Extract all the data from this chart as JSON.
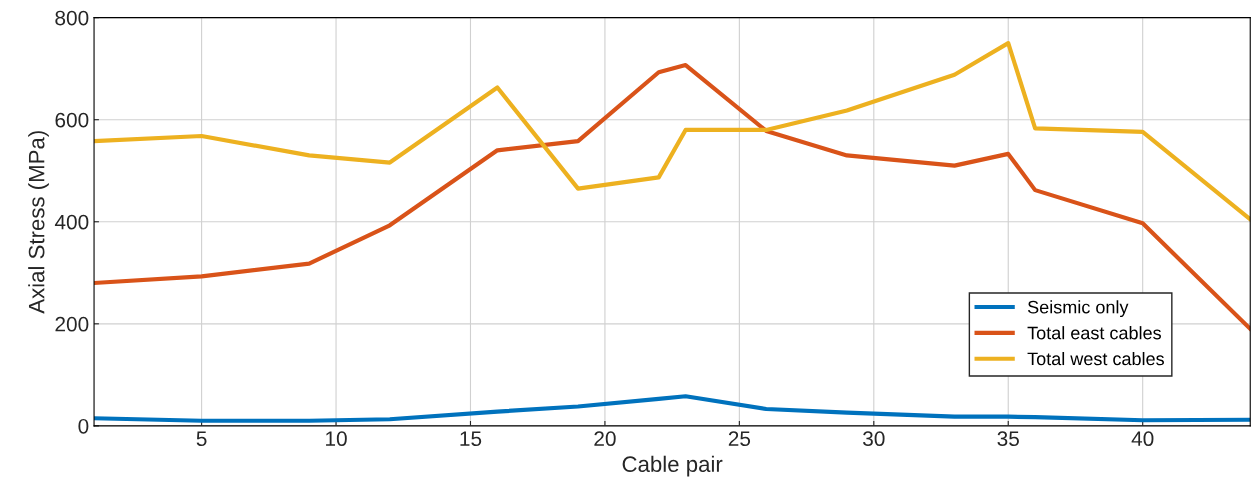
{
  "chart_data": {
    "type": "line",
    "xlabel": "Cable pair",
    "ylabel": "Axial Stress (MPa)",
    "x": [
      1,
      5,
      9,
      12,
      16,
      19,
      22,
      23,
      26,
      29,
      33,
      35,
      36,
      40,
      44
    ],
    "series": [
      {
        "name": "Seismic only",
        "color": "#0072bd",
        "values": [
          15,
          10,
          10,
          13,
          28,
          38,
          53,
          58,
          33,
          26,
          18,
          18,
          17,
          11,
          12
        ]
      },
      {
        "name": "Total east cables",
        "color": "#d95319",
        "values": [
          280,
          293,
          318,
          393,
          540,
          558,
          693,
          707,
          578,
          530,
          510,
          533,
          462,
          397,
          190
        ]
      },
      {
        "name": "Total west cables",
        "color": "#edb120",
        "values": [
          558,
          568,
          530,
          516,
          663,
          465,
          487,
          580,
          580,
          618,
          688,
          750,
          583,
          576,
          405
        ]
      }
    ],
    "xlim": [
      1,
      44
    ],
    "xticks": [
      5,
      10,
      15,
      20,
      25,
      30,
      35,
      40
    ],
    "ylim": [
      0,
      800
    ],
    "yticks": [
      0,
      200,
      400,
      600,
      800
    ],
    "grid": true,
    "legend": "bottom right",
    "marker": "none",
    "line_style": "solid"
  }
}
